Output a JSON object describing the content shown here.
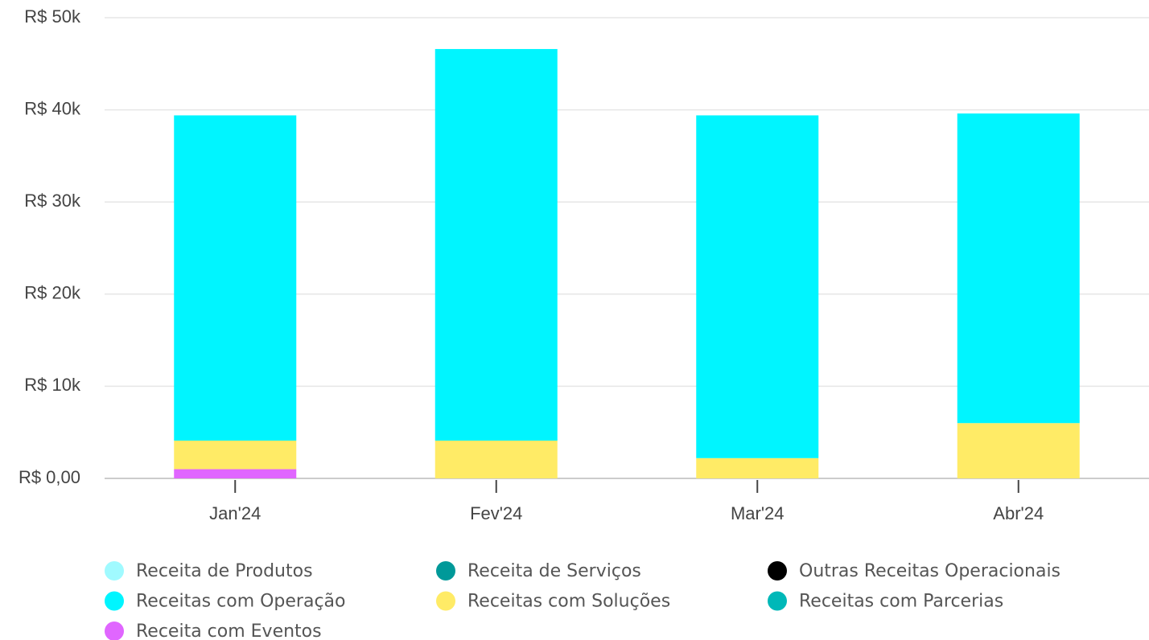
{
  "chart_data": {
    "type": "stacked_bar",
    "categories": [
      "Jan'24",
      "Fev'24",
      "Mar'24",
      "Abr'24"
    ],
    "series": [
      {
        "name": "Receita de Produtos",
        "color": "#a0faff",
        "values": [
          0,
          0,
          0,
          0
        ]
      },
      {
        "name": "Receita de Serviços",
        "color": "#009999",
        "values": [
          0,
          0,
          0,
          0
        ]
      },
      {
        "name": "Outras Receitas Operacionais",
        "color": "#000000",
        "values": [
          0,
          0,
          0,
          0
        ]
      },
      {
        "name": "Receitas com Operação",
        "color": "#00f5ff",
        "values": [
          35300,
          42500,
          37200,
          33600
        ]
      },
      {
        "name": "Receitas com Soluções",
        "color": "#ffeb66",
        "values": [
          3100,
          4100,
          2200,
          6000
        ]
      },
      {
        "name": "Receitas com Parcerias",
        "color": "#00b8b8",
        "values": [
          0,
          0,
          0,
          0
        ]
      },
      {
        "name": "Receita com Eventos",
        "color": "#e066ff",
        "values": [
          1000,
          0,
          0,
          0
        ]
      }
    ],
    "ylim": [
      0,
      50000
    ],
    "yticks": [
      {
        "value": 0,
        "label": "R$ 0,00"
      },
      {
        "value": 10000,
        "label": "R$ 10k"
      },
      {
        "value": 20000,
        "label": "R$ 20k"
      },
      {
        "value": 30000,
        "label": "R$ 30k"
      },
      {
        "value": 40000,
        "label": "R$ 40k"
      },
      {
        "value": 50000,
        "label": "R$ 50k"
      }
    ],
    "grid": true
  }
}
